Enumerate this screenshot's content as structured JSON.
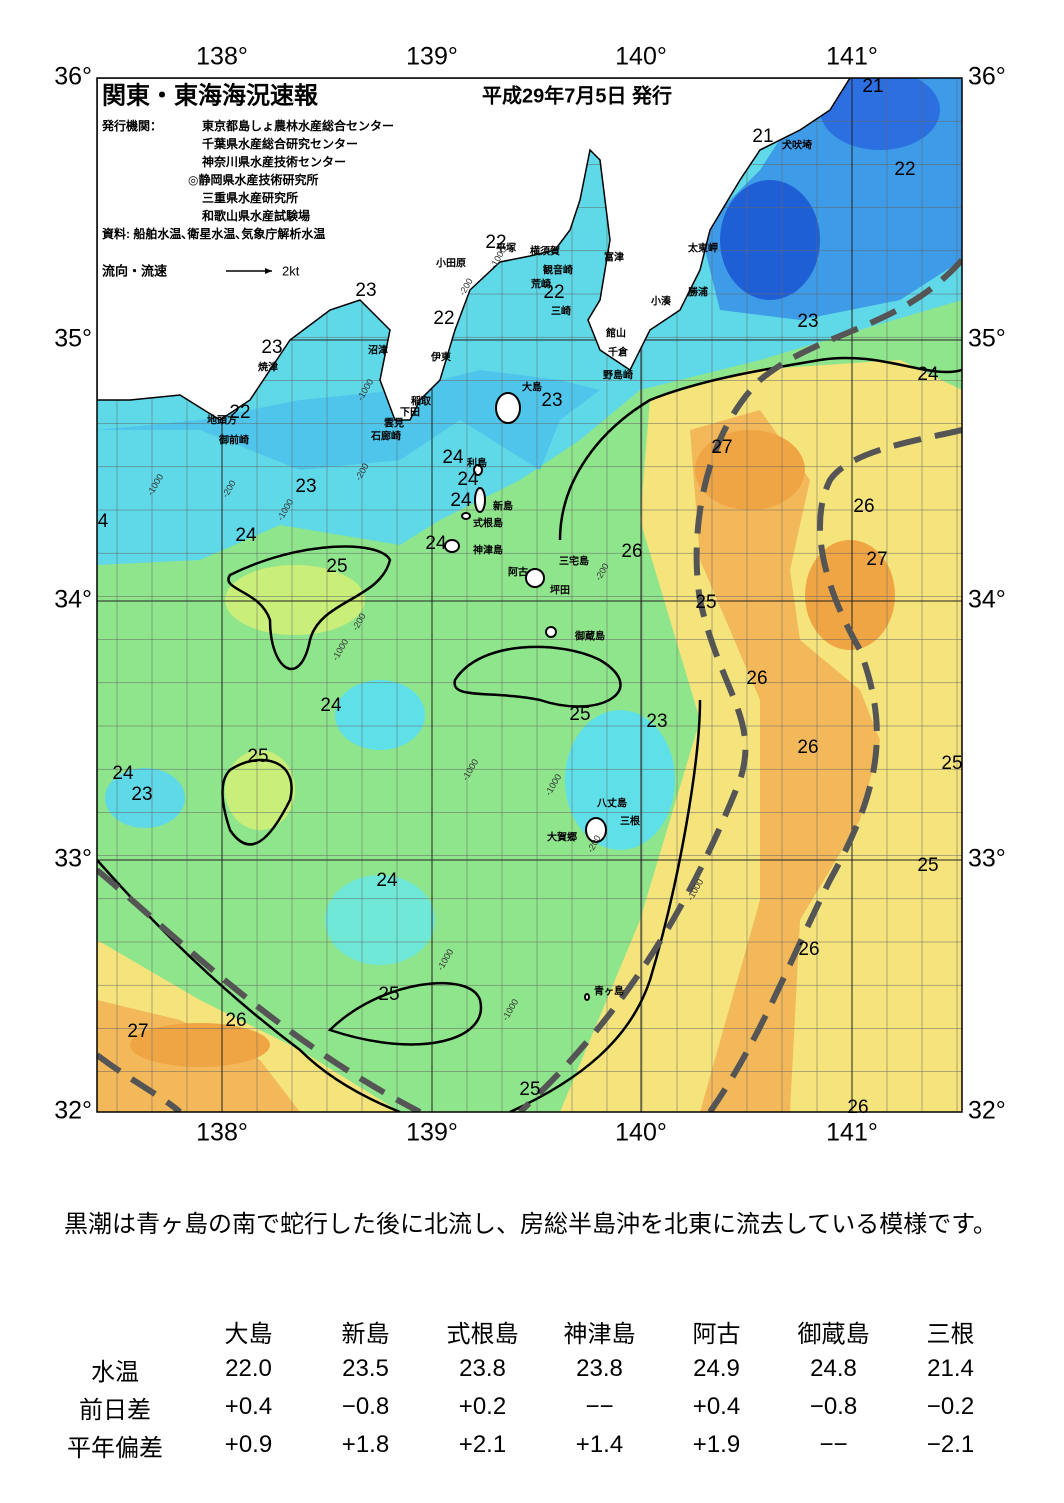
{
  "header": {
    "title": "関東・東海海況速報",
    "date": "平成29年7月5日 発行",
    "publisher_label": "発行機関：",
    "publishers": [
      "東京都島しょ農林水産総合センター",
      "千葉県水産総合研究センター",
      "神奈川県水産技術センター",
      "◎静岡県水産技術研究所",
      "三重県水産研究所",
      "和歌山県水産試験場"
    ],
    "sources": "資料: 船舶水温､衛星水温､気象庁解析水温",
    "legend_label": "流向・流速",
    "legend_speed": "2kt"
  },
  "map": {
    "lon_labels": [
      "138°",
      "139°",
      "140°",
      "141°"
    ],
    "lat_labels": [
      "36°",
      "35°",
      "34°",
      "33°",
      "32°"
    ],
    "contour_labels": [
      "21",
      "21",
      "22",
      "22",
      "22",
      "23",
      "22",
      "23",
      "23",
      "24",
      "22",
      "23",
      "27",
      "24",
      "24",
      "24",
      "23",
      "26",
      "24",
      "24",
      "25",
      "26",
      "27",
      "25",
      "26",
      "24",
      "25",
      "23",
      "26",
      "25",
      "24",
      "23",
      "25",
      "25",
      "24",
      "26",
      "25",
      "27",
      "26",
      "25",
      "26",
      "4"
    ],
    "places": [
      "犬吠埼",
      "平塚",
      "横須賀",
      "小田原",
      "観音崎",
      "富津",
      "太東岬",
      "荒崎",
      "三崎",
      "勝浦",
      "小湊",
      "沼津",
      "伊東",
      "焼津",
      "館山",
      "千倉",
      "野島崎",
      "大島",
      "稲取",
      "下田",
      "雲見",
      "石廊崎",
      "地頭方",
      "御前崎",
      "利島",
      "新島",
      "式根島",
      "神津島",
      "三宅島",
      "阿古",
      "坪田",
      "御蔵島",
      "八丈島",
      "三根",
      "大賀郷",
      "青ヶ島"
    ],
    "depth_labels": [
      "-1000",
      "-200",
      "-1000",
      "-200",
      "-1000",
      "-200",
      "-1000",
      "-200",
      "-1000",
      "-1000",
      "-1000",
      "-200",
      "-1000",
      "-1000",
      "-1000",
      "-200"
    ]
  },
  "text": "黒潮は青ヶ島の南で蛇行した後に北流し、房総半島沖を北東に流去している模様です。",
  "table": {
    "columns": [
      "大島",
      "新島",
      "式根島",
      "神津島",
      "阿古",
      "御蔵島",
      "三根"
    ],
    "rows": [
      {
        "label": "水温",
        "cells": [
          "22.0",
          "23.5",
          "23.8",
          "23.8",
          "24.9",
          "24.8",
          "21.4"
        ]
      },
      {
        "label": "前日差",
        "cells": [
          "+0.4",
          "−0.8",
          "+0.2",
          "−−",
          "+0.4",
          "−0.8",
          "−0.2"
        ]
      },
      {
        "label": "平年偏差",
        "cells": [
          "+0.9",
          "+1.8",
          "+2.1",
          "+1.4",
          "+1.9",
          "−−",
          "−2.1"
        ]
      }
    ]
  }
}
